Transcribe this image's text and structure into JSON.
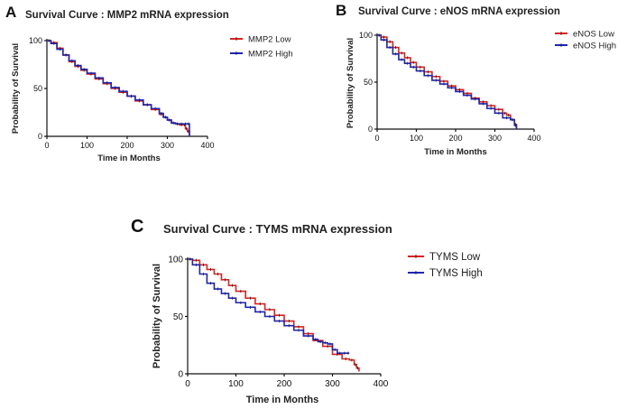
{
  "chart_data": [
    {
      "type": "line",
      "panel": "A",
      "title": "Survival Curve : MMP2 mRNA expression",
      "xlabel": "Time in Months",
      "ylabel": "Probability of Survival",
      "xlim": [
        0,
        400
      ],
      "ylim": [
        0,
        100
      ],
      "xticks": [
        0,
        100,
        200,
        300,
        400
      ],
      "yticks": [
        0,
        50,
        100
      ],
      "legend": "top-right",
      "series": [
        {
          "name": "MMP2 Low",
          "color": "#e02020",
          "x": [
            0,
            10,
            25,
            40,
            55,
            70,
            85,
            100,
            120,
            140,
            160,
            180,
            200,
            220,
            240,
            260,
            280,
            290,
            300,
            310,
            320,
            330,
            340,
            345,
            350,
            355
          ],
          "y": [
            100,
            98,
            92,
            85,
            78,
            73,
            69,
            65,
            60,
            55,
            50,
            46,
            42,
            37,
            33,
            28,
            23,
            20,
            17,
            14,
            13,
            12,
            12,
            8,
            5,
            0
          ]
        },
        {
          "name": "MMP2 High",
          "color": "#1f24b8",
          "x": [
            0,
            10,
            25,
            40,
            55,
            70,
            85,
            100,
            120,
            140,
            160,
            180,
            200,
            220,
            240,
            260,
            280,
            290,
            300,
            310,
            320,
            330,
            340,
            350,
            355
          ],
          "y": [
            100,
            97,
            91,
            85,
            79,
            74,
            70,
            66,
            61,
            56,
            51,
            47,
            42,
            38,
            33,
            29,
            24,
            20,
            17,
            14,
            13,
            13,
            13,
            13,
            0
          ]
        }
      ]
    },
    {
      "type": "line",
      "panel": "B",
      "title": "Survival Curve : eNOS mRNA expression",
      "xlabel": "Time in Months",
      "ylabel": "Probability of Survival",
      "xlim": [
        0,
        400
      ],
      "ylim": [
        0,
        100
      ],
      "xticks": [
        0,
        100,
        200,
        300,
        400
      ],
      "yticks": [
        0,
        50,
        100
      ],
      "legend": "top-right",
      "series": [
        {
          "name": "eNOS Low",
          "color": "#e02020",
          "x": [
            0,
            10,
            25,
            40,
            55,
            70,
            85,
            100,
            120,
            140,
            160,
            180,
            200,
            220,
            240,
            260,
            280,
            300,
            320,
            330,
            340,
            350,
            355
          ],
          "y": [
            100,
            98,
            93,
            87,
            81,
            76,
            71,
            66,
            61,
            56,
            51,
            46,
            42,
            38,
            33,
            29,
            25,
            21,
            17,
            15,
            10,
            5,
            0
          ]
        },
        {
          "name": "eNOS High",
          "color": "#1f24b8",
          "x": [
            0,
            10,
            25,
            40,
            55,
            70,
            85,
            100,
            120,
            140,
            160,
            180,
            200,
            220,
            240,
            260,
            280,
            300,
            320,
            340,
            350,
            355
          ],
          "y": [
            100,
            95,
            87,
            80,
            74,
            70,
            66,
            62,
            57,
            52,
            48,
            44,
            40,
            36,
            32,
            27,
            22,
            17,
            12,
            10,
            4,
            0
          ]
        }
      ]
    },
    {
      "type": "line",
      "panel": "C",
      "title": "Survival Curve : TYMS mRNA expression",
      "xlabel": "Time in Months",
      "ylabel": "Probability of Survival",
      "xlim": [
        0,
        400
      ],
      "ylim": [
        0,
        100
      ],
      "xticks": [
        0,
        100,
        200,
        300,
        400
      ],
      "yticks": [
        0,
        50,
        100
      ],
      "legend": "top-right",
      "series": [
        {
          "name": "TYMS Low",
          "color": "#e02020",
          "x": [
            0,
            10,
            25,
            40,
            55,
            70,
            85,
            100,
            120,
            140,
            160,
            180,
            200,
            220,
            240,
            260,
            280,
            300,
            320,
            335,
            345,
            350,
            355
          ],
          "y": [
            100,
            99,
            95,
            91,
            87,
            82,
            77,
            72,
            66,
            61,
            56,
            51,
            46,
            41,
            35,
            29,
            24,
            17,
            13,
            12,
            8,
            5,
            2
          ]
        },
        {
          "name": "TYMS High",
          "color": "#1f24b8",
          "x": [
            0,
            10,
            25,
            40,
            55,
            70,
            85,
            100,
            120,
            140,
            160,
            180,
            200,
            220,
            240,
            260,
            270,
            280,
            290,
            300,
            310,
            320,
            330,
            335
          ],
          "y": [
            100,
            95,
            87,
            79,
            74,
            70,
            66,
            62,
            58,
            54,
            50,
            46,
            42,
            38,
            33,
            30,
            28,
            27,
            26,
            21,
            18,
            18,
            18,
            18
          ]
        }
      ]
    }
  ]
}
